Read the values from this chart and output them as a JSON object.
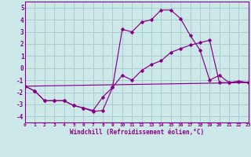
{
  "xlabel": "Windchill (Refroidissement éolien,°C)",
  "bg_color": "#cce8e8",
  "grid_color": "#aacccc",
  "line_color": "#880088",
  "spine_color": "#880088",
  "xlim": [
    0,
    23
  ],
  "ylim": [
    -4.5,
    5.5
  ],
  "yticks": [
    -4,
    -3,
    -2,
    -1,
    0,
    1,
    2,
    3,
    4,
    5
  ],
  "xticks": [
    0,
    1,
    2,
    3,
    4,
    5,
    6,
    7,
    8,
    9,
    10,
    11,
    12,
    13,
    14,
    15,
    16,
    17,
    18,
    19,
    20,
    21,
    22,
    23
  ],
  "line1_x": [
    0,
    1,
    2,
    3,
    4,
    5,
    6,
    7,
    8,
    9,
    10,
    11,
    12,
    13,
    14,
    15,
    16,
    17,
    18,
    19,
    20,
    21,
    22,
    23
  ],
  "line1_y": [
    -1.5,
    -1.9,
    -2.7,
    -2.7,
    -2.7,
    -3.1,
    -3.3,
    -3.6,
    -3.5,
    -1.6,
    3.2,
    3.0,
    3.8,
    4.0,
    4.8,
    4.8,
    4.1,
    2.7,
    1.5,
    -1.0,
    -0.6,
    -1.2,
    -1.1,
    -1.2
  ],
  "line2_x": [
    0,
    1,
    2,
    3,
    4,
    5,
    6,
    7,
    8,
    9,
    10,
    11,
    12,
    13,
    14,
    15,
    16,
    17,
    18,
    19,
    20,
    21,
    22,
    23
  ],
  "line2_y": [
    -1.5,
    -1.9,
    -2.7,
    -2.7,
    -2.7,
    -3.1,
    -3.3,
    -3.5,
    -2.4,
    -1.6,
    -0.6,
    -1.0,
    -0.2,
    0.3,
    0.6,
    1.3,
    1.6,
    1.9,
    2.1,
    2.3,
    -1.2,
    -1.2,
    -1.1,
    -1.2
  ],
  "line3_x": [
    0,
    23
  ],
  "line3_y": [
    -1.5,
    -1.2
  ]
}
